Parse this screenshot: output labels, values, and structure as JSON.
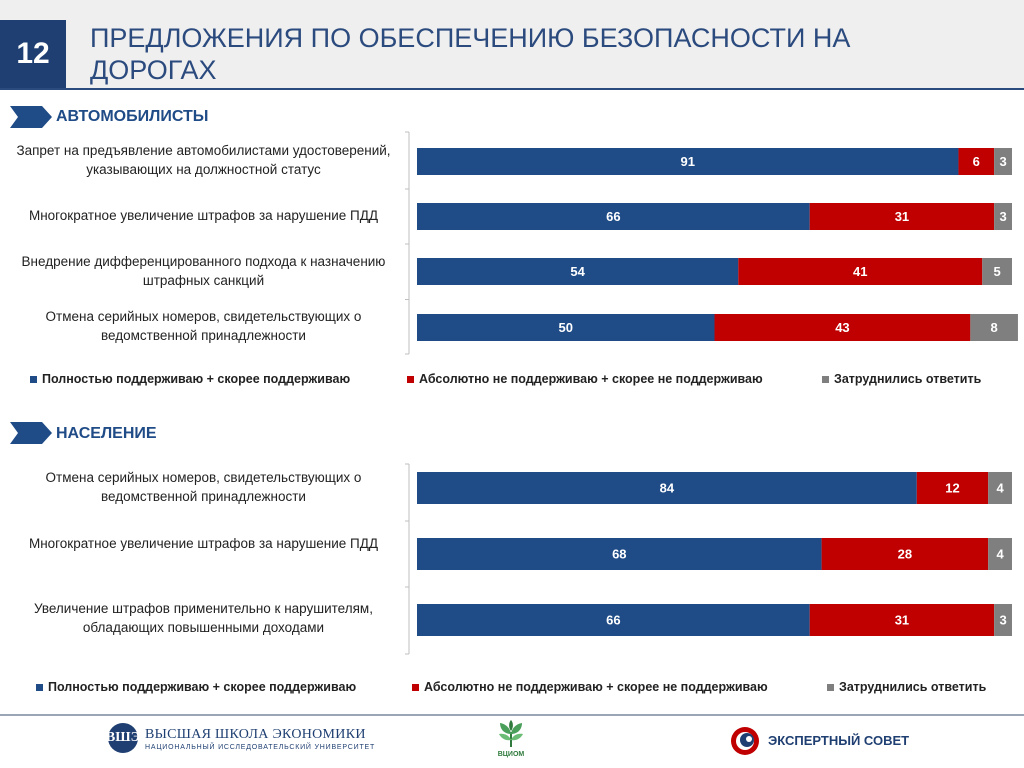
{
  "slide": {
    "number": "12",
    "title": "ПРЕДЛОЖЕНИЯ ПО ОБЕСПЕЧЕНИЮ БЕЗОПАСНОСТИ НА ДОРОГАХ"
  },
  "colors": {
    "support": "#1f4b87",
    "oppose": "#c00000",
    "undecided": "#7f7f7f",
    "accent": "#1f3f72"
  },
  "legend": {
    "support": "Полностью поддерживаю + скорее поддерживаю",
    "oppose": "Абсолютно не поддерживаю + скорее не поддерживаю",
    "undecided": "Затруднились ответить"
  },
  "chart_data": [
    {
      "type": "bar",
      "orientation": "horizontal",
      "stacked": true,
      "title": "АВТОМОБИЛИСТЫ",
      "categories": [
        "Запрет на предъявление автомобилистами удостоверений, указывающих на должностной статус",
        "Многократное увеличение штрафов за нарушение ПДД",
        "Внедрение дифференцированного подхода к назначению штрафных санкций",
        "Отмена серийных номеров, свидетельствующих о ведомственной принадлежности"
      ],
      "series": [
        {
          "name": "Полностью поддерживаю + скорее поддерживаю",
          "values": [
            91,
            66,
            54,
            50
          ]
        },
        {
          "name": "Абсолютно не поддерживаю + скорее не поддерживаю",
          "values": [
            6,
            31,
            41,
            43
          ]
        },
        {
          "name": "Затруднились ответить",
          "values": [
            3,
            3,
            5,
            8
          ]
        }
      ],
      "xlim": [
        0,
        100
      ],
      "legend_position": "bottom"
    },
    {
      "type": "bar",
      "orientation": "horizontal",
      "stacked": true,
      "title": "НАСЕЛЕНИЕ",
      "categories": [
        "Отмена серийных номеров, свидетельствующих о ведомственной принадлежности",
        "Многократное увеличение штрафов за нарушение ПДД",
        "Увеличение штрафов применительно к нарушителям, обладающих повышенными доходами"
      ],
      "series": [
        {
          "name": "Полностью поддерживаю + скорее поддерживаю",
          "values": [
            84,
            68,
            66
          ]
        },
        {
          "name": "Абсолютно не поддерживаю + скорее не поддерживаю",
          "values": [
            12,
            28,
            31
          ]
        },
        {
          "name": "Затруднились ответить",
          "values": [
            4,
            4,
            3
          ]
        }
      ],
      "xlim": [
        0,
        100
      ],
      "legend_position": "bottom"
    }
  ],
  "footer": {
    "hse_mark": "ВШЭ",
    "hse_name": "ВЫСШАЯ ШКОЛА ЭКОНОМИКИ",
    "hse_sub": "НАЦИОНАЛЬНЫЙ ИССЛЕДОВАТЕЛЬСКИЙ УНИВЕРСИТЕТ",
    "vciom_name": "ВЦИОМ",
    "expert_name": "ЭКСПЕРТНЫЙ СОВЕТ"
  }
}
